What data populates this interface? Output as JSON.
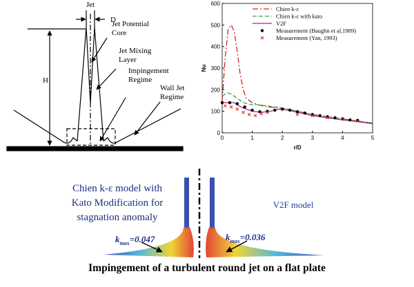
{
  "diagram": {
    "jet": "Jet",
    "d": "D",
    "h": "H",
    "core": [
      "Jet Potential",
      "Core"
    ],
    "mixing": [
      "Jet Mixing",
      "Layer"
    ],
    "impingement": [
      "Impingement",
      "Regime"
    ],
    "wall": [
      "Wall Jet",
      "Regime"
    ]
  },
  "chart_data": {
    "type": "line",
    "xlabel": "r/D",
    "ylabel": "Nu",
    "xlim": [
      0,
      5
    ],
    "ylim": [
      0,
      600
    ],
    "xticks": [
      0,
      1,
      2,
      3,
      4,
      5
    ],
    "yticks": [
      0,
      100,
      200,
      300,
      400,
      500,
      600
    ],
    "series": [
      {
        "name": "Chien k-ε",
        "color": "#d62020",
        "style": "dashdot",
        "marker": "none",
        "x": [
          0,
          0.1,
          0.2,
          0.3,
          0.4,
          0.5,
          0.6,
          0.7,
          0.8,
          1.0,
          1.2,
          1.5,
          2.0,
          2.5,
          3.0,
          3.5,
          4.0,
          4.5,
          5.0
        ],
        "values": [
          150,
          350,
          480,
          500,
          470,
          380,
          270,
          200,
          160,
          140,
          130,
          120,
          115,
          100,
          85,
          75,
          65,
          55,
          45
        ]
      },
      {
        "name": "Chien k-ε with kato",
        "color": "#3aa63a",
        "style": "dashed",
        "marker": "none",
        "x": [
          0,
          0.1,
          0.2,
          0.3,
          0.5,
          0.7,
          1.0,
          1.2,
          1.5,
          2.0,
          2.5,
          3.0,
          3.5,
          4.0,
          4.5,
          5.0
        ],
        "values": [
          170,
          180,
          185,
          180,
          160,
          140,
          130,
          130,
          125,
          115,
          100,
          85,
          75,
          65,
          55,
          45
        ]
      },
      {
        "name": "V2F",
        "color": "#9a2a9a",
        "style": "solid",
        "marker": "none",
        "x": [
          0,
          0.2,
          0.4,
          0.5,
          0.7,
          1.0,
          1.3,
          1.6,
          1.9,
          2.2,
          2.5,
          3.0,
          3.5,
          4.0,
          4.5,
          5.0
        ],
        "values": [
          140,
          140,
          140,
          130,
          115,
          100,
          95,
          100,
          110,
          105,
          95,
          80,
          70,
          60,
          52,
          42
        ]
      },
      {
        "name": "Measurement (Baughn et al,1989)",
        "color": "#000000",
        "style": "none",
        "marker": "dot",
        "x": [
          0,
          0.25,
          0.5,
          0.75,
          1,
          1.25,
          1.5,
          1.75,
          2,
          2.25,
          2.5,
          2.75,
          3,
          3.25,
          3.5,
          3.75,
          4,
          4.25,
          4.5
        ],
        "values": [
          140,
          140,
          135,
          120,
          105,
          98,
          100,
          105,
          110,
          105,
          98,
          92,
          85,
          80,
          75,
          70,
          65,
          60,
          58
        ]
      },
      {
        "name": "Measurement (Yan, 1993)",
        "color": "#d62020",
        "style": "none",
        "marker": "cross",
        "x": [
          0.1,
          0.3,
          0.5,
          0.7,
          0.9,
          1.1,
          1.3,
          1.5,
          2.5,
          3.0,
          3.5,
          4.0,
          4.5
        ],
        "values": [
          125,
          120,
          110,
          95,
          85,
          80,
          88,
          95,
          85,
          80,
          70,
          65,
          55
        ]
      }
    ]
  },
  "contours": {
    "left_title": [
      "Chien k-ε model with",
      "Kato Modification for",
      "stagnation anomaly"
    ],
    "right_title": "V2F model",
    "left_k": {
      "symbol": "k",
      "subscript": "max",
      "value": "=0.047"
    },
    "right_k": {
      "symbol": "k",
      "subscript": "max",
      "value": "=0.036"
    }
  },
  "caption": "Impingement of a turbulent round jet on a flat plate"
}
